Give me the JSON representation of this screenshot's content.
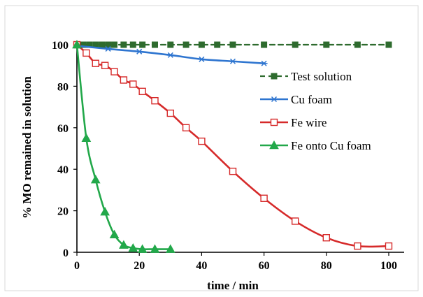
{
  "chart_data": {
    "type": "line",
    "xlabel": "time / min",
    "ylabel": "% MO remained in solution",
    "xlim": [
      0,
      100
    ],
    "ylim": [
      0,
      100
    ],
    "xticks": [
      0,
      20,
      40,
      60,
      80,
      100
    ],
    "yticks": [
      0,
      20,
      40,
      60,
      80,
      100
    ],
    "grid": false,
    "legend_position": "right, middle",
    "series": [
      {
        "name": "Test solution",
        "color": "#2e6b2e",
        "marker": "filled-square",
        "x": [
          0,
          2,
          4,
          6,
          8,
          10,
          12,
          15,
          18,
          21,
          25,
          30,
          35,
          40,
          45,
          50,
          60,
          70,
          80,
          90,
          100
        ],
        "y": [
          100,
          100,
          100,
          100,
          100,
          100,
          100,
          100,
          100,
          100,
          100,
          100,
          100,
          100,
          100,
          100,
          100,
          100,
          100,
          100,
          100
        ]
      },
      {
        "name": "Cu foam",
        "color": "#2e75d0",
        "marker": "asterisk",
        "x": [
          0,
          10,
          20,
          30,
          40,
          50,
          60
        ],
        "y": [
          99.5,
          98,
          96.7,
          95,
          93,
          92,
          91
        ]
      },
      {
        "name": "Fe wire",
        "color": "#d62a2a",
        "marker": "open-square",
        "x": [
          0,
          3,
          6,
          9,
          12,
          15,
          18,
          21,
          25,
          30,
          35,
          40,
          50,
          60,
          70,
          80,
          90,
          100
        ],
        "y": [
          100,
          96,
          91,
          90,
          87,
          83,
          81,
          77.5,
          73,
          67,
          60,
          53.5,
          39,
          26,
          15,
          7,
          3,
          3
        ]
      },
      {
        "name": "Fe onto Cu foam",
        "color": "#22a84a",
        "marker": "filled-triangle",
        "x": [
          0,
          3,
          6,
          9,
          12,
          15,
          18,
          21,
          25,
          30
        ],
        "y": [
          100,
          55,
          35,
          19.5,
          8.5,
          3.5,
          2,
          1.5,
          1.5,
          1.5
        ]
      }
    ]
  }
}
